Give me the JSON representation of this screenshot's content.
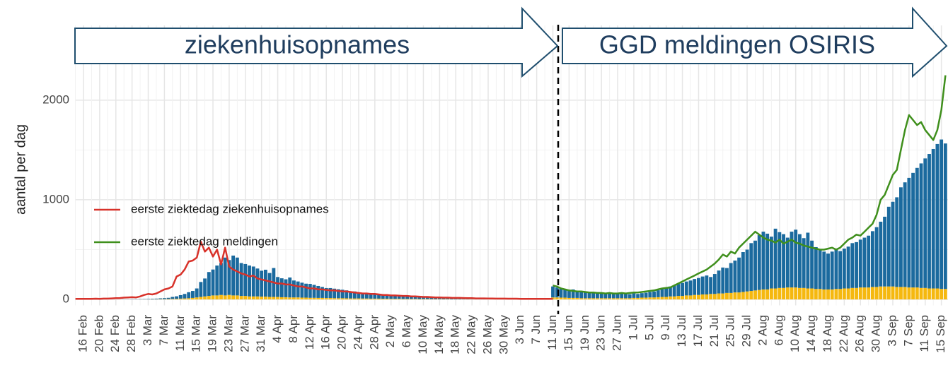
{
  "chart_data": {
    "type": "bar",
    "annotations": [
      "ziekenhuisopnames",
      "GGD meldingen OSIRIS"
    ],
    "ylabel": "aantal per dag",
    "ylim": [
      -60,
      2750
    ],
    "yticks": [
      0,
      1000,
      2000
    ],
    "grid": true,
    "legend": "left",
    "categories": [
      null,
      null,
      "16 Feb",
      null,
      null,
      null,
      "20 Feb",
      null,
      null,
      null,
      "24 Feb",
      null,
      null,
      null,
      "28 Feb",
      null,
      null,
      null,
      "3 Mar",
      null,
      null,
      null,
      "7 Mar",
      null,
      null,
      null,
      "11 Mar",
      null,
      null,
      null,
      "15 Mar",
      null,
      null,
      null,
      "19 Mar",
      null,
      null,
      null,
      "23 Mar",
      null,
      null,
      null,
      "27 Mar",
      null,
      null,
      null,
      "31 Mar",
      null,
      null,
      null,
      "4 Apr",
      null,
      null,
      null,
      "8 Apr",
      null,
      null,
      null,
      "12 Apr",
      null,
      null,
      null,
      "16 Apr",
      null,
      null,
      null,
      "20 Apr",
      null,
      null,
      null,
      "24 Apr",
      null,
      null,
      null,
      "28 Apr",
      null,
      null,
      null,
      "2 May",
      null,
      null,
      null,
      "6 May",
      null,
      null,
      null,
      "10 May",
      null,
      null,
      null,
      "14 May",
      null,
      null,
      null,
      "18 May",
      null,
      null,
      null,
      "22 May",
      null,
      null,
      null,
      "26 May",
      null,
      null,
      null,
      "30 May",
      null,
      null,
      null,
      "3 Jun",
      null,
      null,
      null,
      "7 Jun",
      null,
      null,
      null,
      "11 Jun",
      null,
      null,
      null,
      "15 Jun",
      null,
      null,
      null,
      "19 Jun",
      null,
      null,
      null,
      "23 Jun",
      null,
      null,
      null,
      "27 Jun",
      null,
      null,
      null,
      "1 Jul",
      null,
      null,
      null,
      "5 Jul",
      null,
      null,
      null,
      "9 Jul",
      null,
      null,
      null,
      "13 Jul",
      null,
      null,
      null,
      "17 Jul",
      null,
      null,
      null,
      "21 Jul",
      null,
      null,
      null,
      "25 Jul",
      null,
      null,
      null,
      "29 Jul",
      null,
      null,
      null,
      "2 Aug",
      null,
      null,
      null,
      "6 Aug",
      null,
      null,
      null,
      "10 Aug",
      null,
      null,
      null,
      "14 Aug",
      null,
      null,
      null,
      "18 Aug",
      null,
      null,
      null,
      "22 Aug",
      null,
      null,
      null,
      "26 Aug",
      null,
      null,
      null,
      "30 Aug",
      null,
      null,
      null,
      "3 Sep",
      null,
      null,
      null,
      "7 Sep",
      null,
      null,
      null,
      "11 Sep",
      null,
      null,
      null,
      "15 Sep",
      null
    ],
    "bars": [
      {
        "color": "#f5b80f",
        "values": [
          0,
          0,
          0,
          0,
          0,
          0,
          0,
          0,
          0,
          0,
          0,
          0,
          0,
          0,
          0,
          0,
          1,
          1,
          1,
          2,
          2,
          3,
          3,
          4,
          5,
          6,
          8,
          10,
          12,
          15,
          20,
          25,
          30,
          35,
          40,
          40,
          45,
          40,
          45,
          40,
          40,
          35,
          35,
          30,
          30,
          30,
          28,
          28,
          25,
          25,
          25,
          22,
          22,
          20,
          20,
          20,
          18,
          18,
          16,
          16,
          15,
          15,
          14,
          14,
          13,
          12,
          12,
          11,
          10,
          10,
          10,
          9,
          9,
          8,
          8,
          8,
          7,
          7,
          6,
          6,
          6,
          5,
          5,
          5,
          5,
          4,
          4,
          4,
          3,
          3,
          3,
          3,
          3,
          2,
          2,
          2,
          2,
          2,
          2,
          2,
          1,
          1,
          1,
          1,
          1,
          1,
          1,
          1,
          1,
          1,
          1,
          1,
          1,
          1,
          1,
          1,
          1,
          1,
          20,
          20,
          18,
          18,
          15,
          15,
          15,
          12,
          12,
          12,
          12,
          12,
          12,
          12,
          12,
          12,
          12,
          12,
          12,
          12,
          15,
          15,
          18,
          18,
          20,
          20,
          22,
          25,
          25,
          30,
          30,
          35,
          35,
          40,
          40,
          45,
          45,
          50,
          50,
          55,
          55,
          60,
          60,
          65,
          65,
          70,
          70,
          75,
          80,
          85,
          90,
          95,
          100,
          100,
          110,
          110,
          115,
          115,
          120,
          120,
          120,
          115,
          115,
          110,
          110,
          105,
          105,
          100,
          100,
          100,
          105,
          105,
          110,
          110,
          115,
          115,
          120,
          120,
          120,
          125,
          125,
          130,
          130,
          130,
          130,
          125,
          125,
          125,
          120,
          120,
          120,
          115,
          115,
          110,
          110,
          110,
          105,
          105
        ]
      },
      {
        "color": "#1b6a9e",
        "values": [
          0,
          0,
          0,
          0,
          0,
          0,
          0,
          0,
          0,
          0,
          0,
          0,
          1,
          1,
          2,
          2,
          3,
          3,
          4,
          5,
          6,
          8,
          10,
          12,
          20,
          25,
          35,
          45,
          60,
          70,
          90,
          150,
          180,
          240,
          260,
          300,
          320,
          380,
          350,
          400,
          380,
          330,
          320,
          310,
          300,
          280,
          260,
          270,
          240,
          290,
          200,
          190,
          180,
          200,
          170,
          160,
          150,
          140,
          140,
          130,
          120,
          110,
          100,
          100,
          95,
          90,
          85,
          80,
          70,
          70,
          60,
          55,
          55,
          50,
          45,
          40,
          40,
          35,
          30,
          30,
          28,
          25,
          25,
          22,
          20,
          20,
          18,
          16,
          15,
          15,
          14,
          12,
          12,
          10,
          10,
          9,
          9,
          8,
          8,
          7,
          7,
          6,
          6,
          5,
          5,
          5,
          4,
          4,
          3,
          3,
          3,
          2,
          2,
          2,
          2,
          2,
          2,
          2,
          110,
          100,
          90,
          80,
          70,
          85,
          70,
          60,
          65,
          60,
          55,
          60,
          55,
          50,
          55,
          50,
          45,
          50,
          45,
          40,
          45,
          40,
          45,
          50,
          55,
          60,
          70,
          80,
          90,
          100,
          110,
          120,
          130,
          140,
          150,
          160,
          170,
          180,
          190,
          170,
          200,
          230,
          260,
          250,
          300,
          320,
          350,
          400,
          420,
          480,
          500,
          550,
          580,
          560,
          520,
          600,
          560,
          540,
          500,
          560,
          580,
          540,
          500,
          560,
          480,
          420,
          400,
          380,
          360,
          380,
          400,
          380,
          400,
          420,
          450,
          460,
          480,
          500,
          520,
          560,
          600,
          650,
          700,
          800,
          850,
          900,
          1000,
          1050,
          1100,
          1150,
          1200,
          1250,
          1300,
          1350,
          1400,
          1450,
          1500,
          1460
        ]
      }
    ],
    "series": [
      {
        "name": "eerste ziektedag ziekenhuisopnames",
        "color": "#d8322a",
        "values": [
          5,
          5,
          6,
          6,
          5,
          7,
          6,
          8,
          8,
          10,
          12,
          14,
          18,
          20,
          22,
          20,
          30,
          45,
          55,
          50,
          60,
          80,
          100,
          110,
          130,
          230,
          250,
          300,
          380,
          390,
          420,
          580,
          480,
          520,
          430,
          500,
          350,
          520,
          330,
          300,
          280,
          260,
          250,
          230,
          240,
          210,
          200,
          190,
          180,
          170,
          160,
          160,
          150,
          150,
          140,
          130,
          130,
          120,
          110,
          110,
          100,
          100,
          95,
          90,
          90,
          85,
          80,
          80,
          75,
          70,
          65,
          60,
          60,
          55,
          55,
          50,
          45,
          45,
          40,
          40,
          38,
          35,
          35,
          30,
          30,
          28,
          25,
          25,
          22,
          20,
          20,
          18,
          18,
          16,
          15,
          15,
          14,
          12,
          12,
          10,
          10,
          10,
          9,
          9,
          8,
          8,
          8,
          7,
          7,
          7,
          6,
          6,
          6,
          5,
          5,
          5,
          5,
          5,
          5,
          null,
          null,
          null,
          null,
          null,
          null,
          null,
          null,
          null,
          null,
          null,
          null,
          null,
          null,
          null,
          null,
          null,
          null,
          null,
          null,
          null,
          null,
          null,
          null,
          null,
          null,
          null,
          null,
          null,
          null,
          null,
          null,
          null,
          null,
          null,
          null,
          null,
          null,
          null,
          null,
          null,
          null,
          null,
          null,
          null,
          null,
          null,
          null,
          null,
          null,
          null,
          null,
          null,
          null,
          null,
          null,
          null,
          null,
          null,
          null,
          null,
          null,
          null,
          null,
          null,
          null,
          null,
          null,
          null,
          null,
          null,
          null,
          null,
          null,
          null,
          null,
          null,
          null,
          null,
          null,
          null,
          null,
          null,
          null,
          null,
          null,
          null,
          null,
          null,
          null,
          null,
          null,
          null,
          null,
          null,
          null,
          null
        ]
      },
      {
        "name": "eerste ziektedag meldingen",
        "color": "#3f8f1c",
        "values": [
          null,
          null,
          null,
          null,
          null,
          null,
          null,
          null,
          null,
          null,
          null,
          null,
          null,
          null,
          null,
          null,
          null,
          null,
          null,
          null,
          null,
          null,
          null,
          null,
          null,
          null,
          null,
          null,
          null,
          null,
          null,
          null,
          null,
          null,
          null,
          null,
          null,
          null,
          null,
          null,
          null,
          null,
          null,
          null,
          null,
          null,
          null,
          null,
          null,
          null,
          null,
          null,
          null,
          null,
          null,
          null,
          null,
          null,
          null,
          null,
          null,
          null,
          null,
          null,
          null,
          null,
          null,
          null,
          null,
          null,
          null,
          null,
          null,
          null,
          null,
          null,
          null,
          null,
          null,
          null,
          null,
          null,
          null,
          null,
          null,
          null,
          null,
          null,
          null,
          null,
          null,
          null,
          null,
          null,
          null,
          null,
          null,
          null,
          null,
          null,
          null,
          null,
          null,
          null,
          null,
          null,
          null,
          null,
          null,
          null,
          null,
          null,
          null,
          null,
          null,
          null,
          null,
          null,
          140,
          130,
          110,
          100,
          90,
          85,
          80,
          80,
          75,
          70,
          70,
          65,
          65,
          60,
          65,
          60,
          60,
          65,
          60,
          65,
          70,
          70,
          75,
          80,
          85,
          90,
          100,
          110,
          115,
          120,
          140,
          160,
          180,
          200,
          220,
          240,
          260,
          280,
          300,
          330,
          360,
          400,
          450,
          430,
          480,
          460,
          520,
          560,
          600,
          640,
          680,
          650,
          620,
          600,
          590,
          570,
          600,
          560,
          580,
          600,
          570,
          560,
          540,
          530,
          520,
          510,
          500,
          500,
          510,
          520,
          500,
          520,
          560,
          600,
          620,
          650,
          640,
          680,
          720,
          760,
          850,
          1000,
          1050,
          1150,
          1250,
          1300,
          1500,
          1700,
          1850,
          1800,
          1750,
          1780,
          1700,
          1650,
          1600,
          1700,
          1900,
          2250
        ]
      }
    ]
  }
}
